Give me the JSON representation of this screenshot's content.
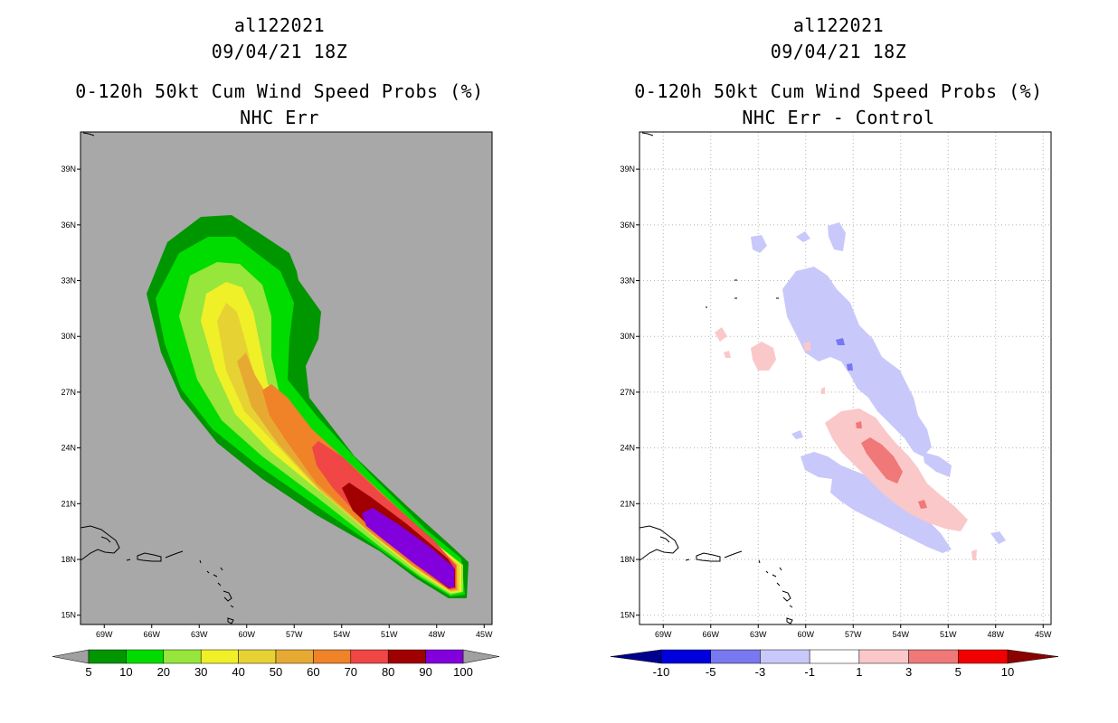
{
  "chart_data": [
    {
      "type": "heatmap",
      "storm_id": "al122021",
      "datetime": "09/04/21 18Z",
      "title": "0-120h 50kt Cum Wind Speed Probs (%)",
      "subtitle": "NHC Err",
      "x_ticks": [
        "69W",
        "66W",
        "63W",
        "60W",
        "57W",
        "54W",
        "51W",
        "48W",
        "45W"
      ],
      "y_ticks": [
        "15N",
        "18N",
        "21N",
        "24N",
        "27N",
        "30N",
        "33N",
        "36N",
        "39N"
      ],
      "xlim": [
        -70.5,
        -44.5
      ],
      "ylim": [
        14.5,
        41.0
      ],
      "grid": false,
      "colorbar": {
        "levels": [
          "5",
          "10",
          "20",
          "30",
          "40",
          "50",
          "60",
          "70",
          "80",
          "90",
          "100"
        ],
        "colors": [
          "#009600",
          "#00dc00",
          "#96e63c",
          "#f0f028",
          "#e6d232",
          "#e6aa32",
          "#f08228",
          "#f04646",
          "#a00000",
          "#8200dc"
        ],
        "extend_color": "#a0a0a0"
      },
      "background": "#a8a8a8",
      "contours": [
        {
          "level": "5",
          "color": "#009600"
        },
        {
          "level": "10",
          "color": "#00dc00"
        },
        {
          "level": "20",
          "color": "#96e63c"
        },
        {
          "level": "30",
          "color": "#f0f028"
        },
        {
          "level": "40",
          "color": "#e6d232"
        },
        {
          "level": "50",
          "color": "#e6aa32"
        },
        {
          "level": "60",
          "color": "#f08228"
        },
        {
          "level": "70",
          "color": "#f04646"
        },
        {
          "level": "80",
          "color": "#a00000"
        },
        {
          "level": "90",
          "color": "#8200dc"
        }
      ]
    },
    {
      "type": "heatmap",
      "storm_id": "al122021",
      "datetime": "09/04/21 18Z",
      "title": "0-120h 50kt Cum Wind Speed Probs (%)",
      "subtitle": "NHC Err - Control",
      "x_ticks": [
        "69W",
        "66W",
        "63W",
        "60W",
        "57W",
        "54W",
        "51W",
        "48W",
        "45W"
      ],
      "y_ticks": [
        "15N",
        "18N",
        "21N",
        "24N",
        "27N",
        "30N",
        "33N",
        "36N",
        "39N"
      ],
      "xlim": [
        -70.5,
        -44.5
      ],
      "ylim": [
        14.5,
        41.0
      ],
      "grid": true,
      "colorbar": {
        "levels": [
          "-10",
          "-5",
          "-3",
          "-1",
          "1",
          "3",
          "5",
          "10"
        ],
        "colors": [
          "#0000dc",
          "#7878f0",
          "#c8c8fa",
          "#ffffff",
          "#fac8c8",
          "#f07878",
          "#f00000"
        ],
        "extend_low_color": "#00008c",
        "extend_high_color": "#8c0000"
      },
      "background": "#ffffff"
    }
  ]
}
